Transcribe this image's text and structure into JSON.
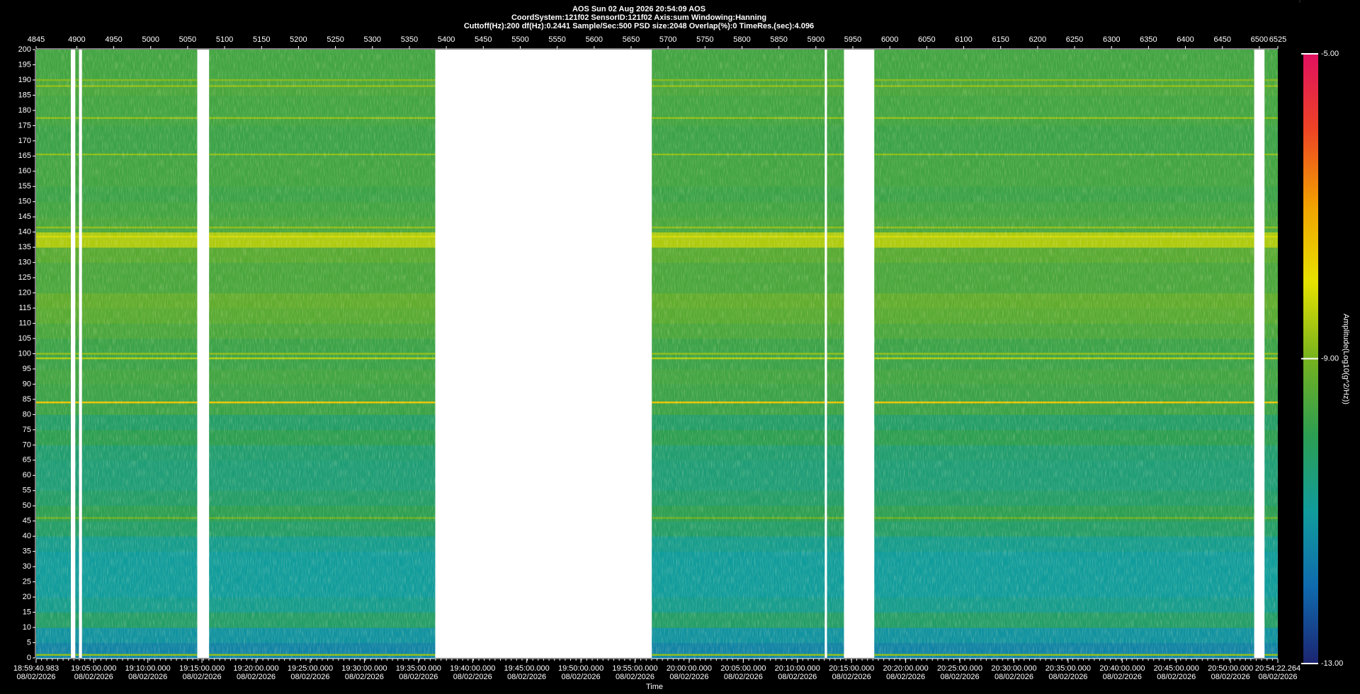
{
  "chart_data": {
    "type": "spectrogram",
    "title": "AOS  Sun 02 Aug 2026 20:54:09  AOS",
    "subtitle": [
      "CoordSystem:121f02   SensorID:121f02   Axis:sum   Windowing:Hanning",
      "Cuttoff(Hz):200    df(Hz):0.2441    Sample/Sec:500    PSD size:2048    Overlap(%):0    TimeRes.(sec):4.096"
    ],
    "xlabel": "Time",
    "colorbar_label": "Amplitude(Log10(g^2/Hz))",
    "x2lim": [
      4845,
      6525
    ],
    "x2ticks": [
      4845,
      4900,
      4950,
      5000,
      5050,
      5100,
      5150,
      5200,
      5250,
      5300,
      5350,
      5400,
      5450,
      5500,
      5550,
      5600,
      5650,
      5700,
      5750,
      5800,
      5850,
      5900,
      5950,
      6000,
      6050,
      6100,
      6150,
      6200,
      6250,
      6300,
      6350,
      6400,
      6450,
      6500,
      6525
    ],
    "xlim": [
      "18:59:40.983",
      "20:54:22.264"
    ],
    "xticks": [
      {
        "time": "18:59:40.983",
        "date": "08/02/2026"
      },
      {
        "time": "19:05:00.000",
        "date": "08/02/2026"
      },
      {
        "time": "19:10:00.000",
        "date": "08/02/2026"
      },
      {
        "time": "19:15:00.000",
        "date": "08/02/2026"
      },
      {
        "time": "19:20:00.000",
        "date": "08/02/2026"
      },
      {
        "time": "19:25:00.000",
        "date": "08/02/2026"
      },
      {
        "time": "19:30:00.000",
        "date": "08/02/2026"
      },
      {
        "time": "19:35:00.000",
        "date": "08/02/2026"
      },
      {
        "time": "19:40:00.000",
        "date": "08/02/2026"
      },
      {
        "time": "19:45:00.000",
        "date": "08/02/2026"
      },
      {
        "time": "19:50:00.000",
        "date": "08/02/2026"
      },
      {
        "time": "19:55:00.000",
        "date": "08/02/2026"
      },
      {
        "time": "20:00:00.000",
        "date": "08/02/2026"
      },
      {
        "time": "20:05:00.000",
        "date": "08/02/2026"
      },
      {
        "time": "20:10:00.000",
        "date": "08/02/2026"
      },
      {
        "time": "20:15:00.000",
        "date": "08/02/2026"
      },
      {
        "time": "20:20:00.000",
        "date": "08/02/2026"
      },
      {
        "time": "20:25:00.000",
        "date": "08/02/2026"
      },
      {
        "time": "20:30:00.000",
        "date": "08/02/2026"
      },
      {
        "time": "20:35:00.000",
        "date": "08/02/2026"
      },
      {
        "time": "20:40:00.000",
        "date": "08/02/2026"
      },
      {
        "time": "20:45:00.000",
        "date": "08/02/2026"
      },
      {
        "time": "20:50:00.000",
        "date": "08/02/2026"
      },
      {
        "time": "20:54:22.264",
        "date": "08/02/2026"
      }
    ],
    "ylim": [
      0,
      200
    ],
    "yticks": [
      0,
      5,
      10,
      15,
      20,
      25,
      30,
      35,
      40,
      45,
      50,
      55,
      60,
      65,
      70,
      75,
      80,
      85,
      90,
      95,
      100,
      105,
      110,
      115,
      120,
      125,
      130,
      135,
      140,
      145,
      150,
      155,
      160,
      165,
      170,
      175,
      180,
      185,
      190,
      195,
      200
    ],
    "segments": [
      [
        4845,
        4892
      ],
      [
        4898,
        4903
      ],
      [
        4907,
        5063
      ],
      [
        5079,
        5385
      ],
      [
        5678,
        5912
      ],
      [
        5915,
        5938
      ],
      [
        5979,
        6493
      ],
      [
        6507,
        6525
      ]
    ],
    "bins": [
      0,
      5,
      10,
      15,
      20,
      25,
      30,
      35,
      40,
      45,
      50,
      55,
      60,
      65,
      70,
      75,
      80,
      85,
      90,
      95,
      100,
      105,
      110,
      115,
      120,
      125,
      130,
      135,
      140,
      145,
      150,
      155,
      160,
      165,
      170,
      175,
      180,
      185,
      190,
      195,
      200
    ],
    "amplitude": [
      -11.5,
      -11.2,
      -10.3,
      -10.8,
      -11,
      -11,
      -11,
      -10.8,
      -10.3,
      -10,
      -10.3,
      -10.5,
      -10.5,
      -10.4,
      -10,
      -10.3,
      -9.8,
      -9.8,
      -9.7,
      -9.8,
      -9.8,
      -9.6,
      -9.4,
      -9.3,
      -9.6,
      -9.6,
      -9.4,
      -8.5,
      -9.6,
      -9.7,
      -9.8,
      -9.7,
      -9.7,
      -9.8,
      -9.8,
      -9.7,
      -9.7,
      -9.6,
      -9.7,
      -9.7
    ],
    "lines": [
      {
        "freq": 1,
        "amplitude": -8.8
      },
      {
        "freq": 46,
        "amplitude": -9.2
      },
      {
        "freq": 84,
        "amplitude": -7.5
      },
      {
        "freq": 98.5,
        "amplitude": -8.5
      },
      {
        "freq": 100,
        "amplitude": -8.8
      },
      {
        "freq": 138.5,
        "amplitude": -8.2
      },
      {
        "freq": 141.5,
        "amplitude": -8.8
      },
      {
        "freq": 165.5,
        "amplitude": -8.8
      },
      {
        "freq": 177.5,
        "amplitude": -8.8
      },
      {
        "freq": 188,
        "amplitude": -8.8
      },
      {
        "freq": 190,
        "amplitude": -8.9
      }
    ],
    "clim": [
      -13,
      -5
    ],
    "cticks": [
      {
        "value": -5,
        "label": "-5.00"
      },
      {
        "value": -9,
        "label": "-9.00"
      },
      {
        "value": -13,
        "label": "-13.00"
      }
    ],
    "colormap": [
      [
        -13,
        "#1c2470"
      ],
      [
        -12,
        "#0f6aae"
      ],
      [
        -11,
        "#119c9c"
      ],
      [
        -10,
        "#2c9e52"
      ],
      [
        -9,
        "#76b21e"
      ],
      [
        -8,
        "#e6e200"
      ],
      [
        -7,
        "#f2a200"
      ],
      [
        -6,
        "#ee4424"
      ],
      [
        -5,
        "#e01060"
      ]
    ]
  }
}
